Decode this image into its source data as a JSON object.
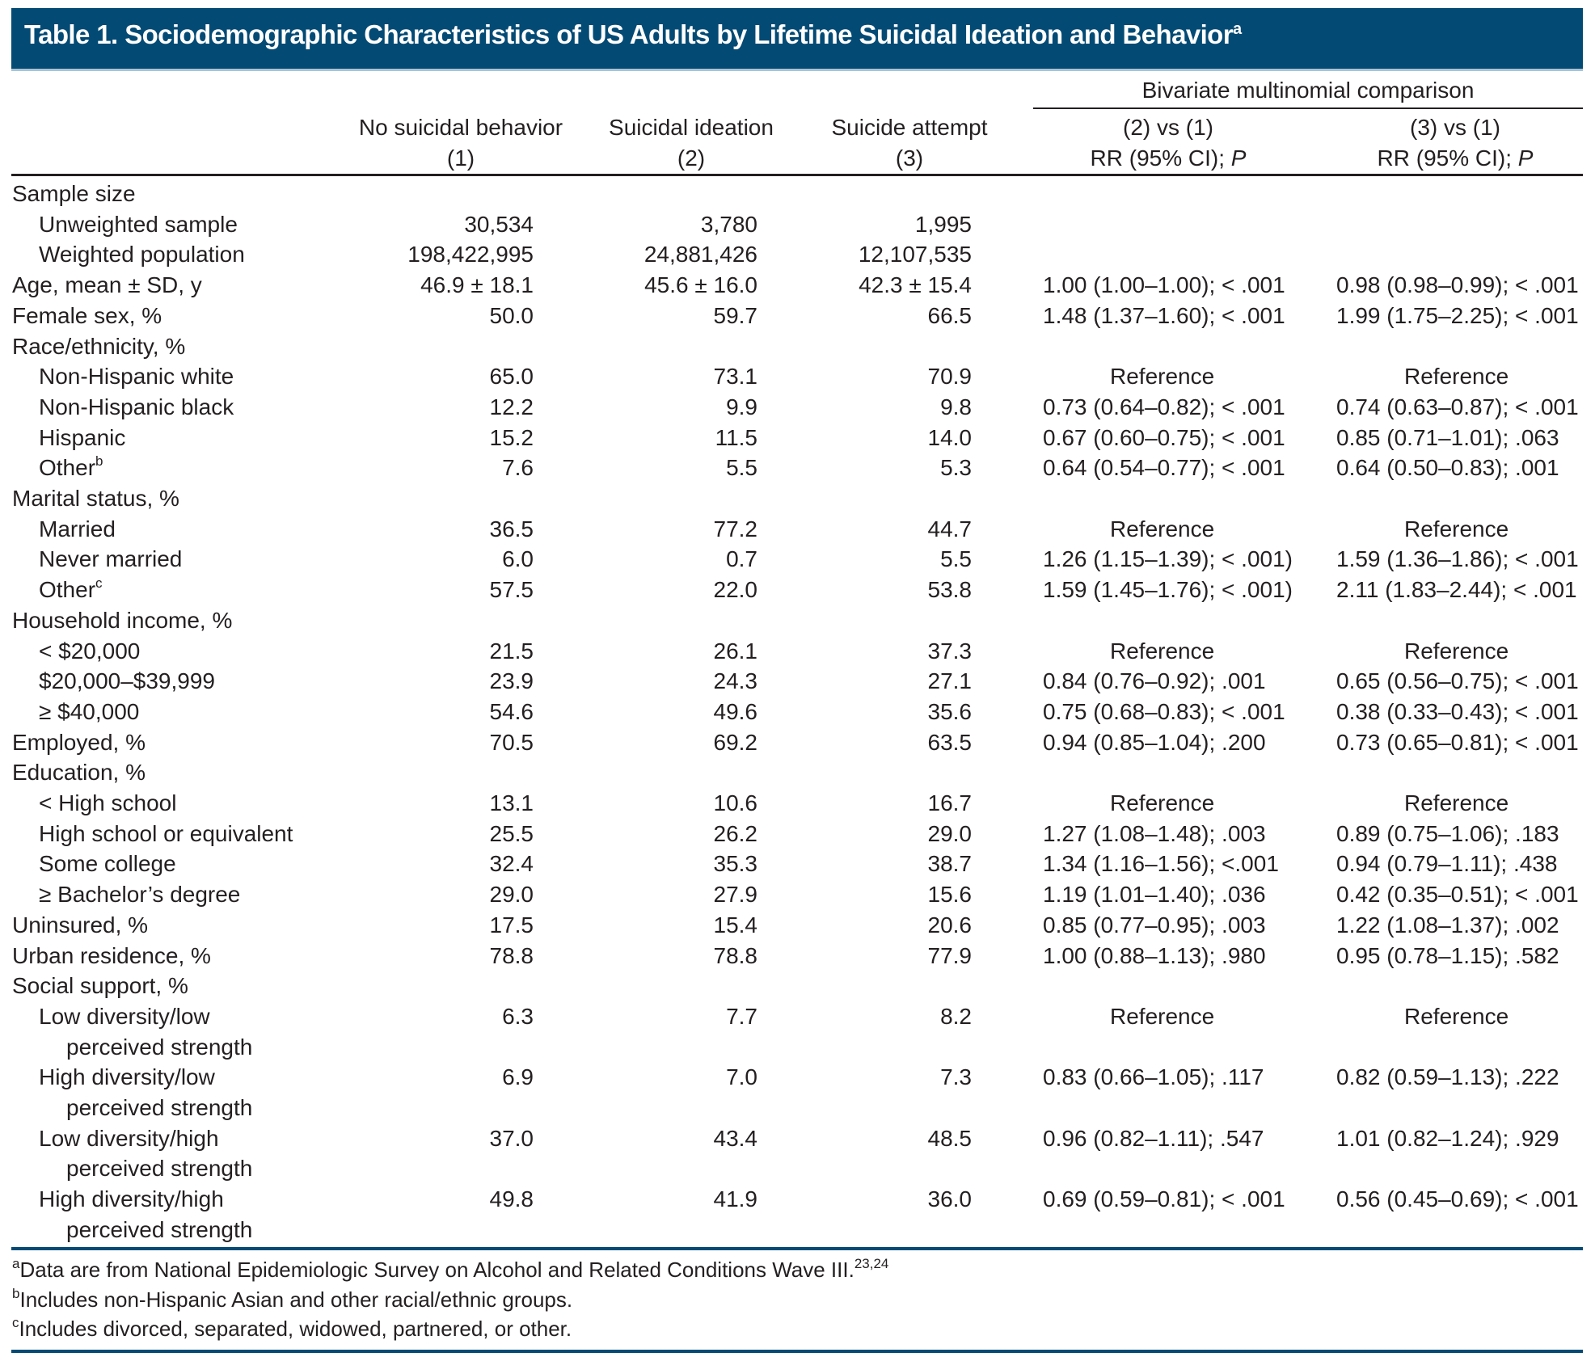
{
  "title": {
    "text": "Table 1. Sociodemographic Characteristics of US Adults by Lifetime Suicidal Ideation and Behavior",
    "footnote_marker": "a"
  },
  "header": {
    "group_label": "Bivariate multinomial comparison",
    "columns": [
      {
        "line1": "No suicidal behavior",
        "line2": "(1)"
      },
      {
        "line1": "Suicidal ideation",
        "line2": "(2)"
      },
      {
        "line1": "Suicide attempt",
        "line2": "(3)"
      },
      {
        "line1": "(2) vs (1)",
        "line2": "RR (95% CI); ",
        "line2_italic": "P"
      },
      {
        "line1": "(3) vs (1)",
        "line2": "RR (95% CI); ",
        "line2_italic": "P"
      }
    ]
  },
  "rows": [
    {
      "label": "Sample size",
      "indent": 0,
      "values": [
        "",
        "",
        "",
        "",
        ""
      ]
    },
    {
      "label": "Unweighted sample",
      "indent": 1,
      "values": [
        "30,534",
        "3,780",
        "1,995",
        "",
        ""
      ]
    },
    {
      "label": "Weighted population",
      "indent": 1,
      "values": [
        "198,422,995",
        "24,881,426",
        "12,107,535",
        "",
        ""
      ]
    },
    {
      "label": "Age, mean ± SD, y",
      "indent": 0,
      "values": [
        "46.9 ± 18.1",
        "45.6 ± 16.0",
        "42.3 ± 15.4",
        "1.00 (1.00–1.00); < .001",
        "0.98 (0.98–0.99); < .001"
      ]
    },
    {
      "label": "Female sex, %",
      "indent": 0,
      "values": [
        "50.0",
        "59.7",
        "66.5",
        "1.48 (1.37–1.60); < .001",
        "1.99 (1.75–2.25); < .001"
      ]
    },
    {
      "label": "Race/ethnicity, %",
      "indent": 0,
      "values": [
        "",
        "",
        "",
        "",
        ""
      ]
    },
    {
      "label": "Non-Hispanic white",
      "indent": 1,
      "values": [
        "65.0",
        "73.1",
        "70.9",
        "Reference",
        "Reference"
      ]
    },
    {
      "label": "Non-Hispanic black",
      "indent": 1,
      "values": [
        "12.2",
        "9.9",
        "9.8",
        "0.73 (0.64–0.82); < .001",
        "0.74 (0.63–0.87); < .001"
      ]
    },
    {
      "label": "Hispanic",
      "indent": 1,
      "values": [
        "15.2",
        "11.5",
        "14.0",
        "0.67 (0.60–0.75); < .001",
        "0.85 (0.71–1.01); .063"
      ]
    },
    {
      "label": "Other",
      "sup": "b",
      "indent": 1,
      "values": [
        "7.6",
        "5.5",
        "5.3",
        "0.64 (0.54–0.77); < .001",
        "0.64 (0.50–0.83); .001"
      ]
    },
    {
      "label": "Marital status, %",
      "indent": 0,
      "values": [
        "",
        "",
        "",
        "",
        ""
      ]
    },
    {
      "label": "Married",
      "indent": 1,
      "values": [
        "36.5",
        "77.2",
        "44.7",
        "Reference",
        "Reference"
      ]
    },
    {
      "label": "Never married",
      "indent": 1,
      "values": [
        "6.0",
        "0.7",
        "5.5",
        "1.26 (1.15–1.39); < .001)",
        "1.59 (1.36–1.86); < .001"
      ]
    },
    {
      "label": "Other",
      "sup": "c",
      "indent": 1,
      "values": [
        "57.5",
        "22.0",
        "53.8",
        "1.59 (1.45–1.76); < .001)",
        "2.11 (1.83–2.44); < .001"
      ]
    },
    {
      "label": "Household income, %",
      "indent": 0,
      "values": [
        "",
        "",
        "",
        "",
        ""
      ]
    },
    {
      "label": "< $20,000",
      "indent": 1,
      "values": [
        "21.5",
        "26.1",
        "37.3",
        "Reference",
        "Reference"
      ]
    },
    {
      "label": "$20,000–$39,999",
      "indent": 1,
      "values": [
        "23.9",
        "24.3",
        "27.1",
        "0.84 (0.76–0.92); .001",
        "0.65 (0.56–0.75); < .001"
      ]
    },
    {
      "label": "≥ $40,000",
      "indent": 1,
      "values": [
        "54.6",
        "49.6",
        "35.6",
        "0.75 (0.68–0.83); < .001",
        "0.38 (0.33–0.43); < .001"
      ]
    },
    {
      "label": "Employed, %",
      "indent": 0,
      "values": [
        "70.5",
        "69.2",
        "63.5",
        "0.94 (0.85–1.04); .200",
        "0.73 (0.65–0.81); < .001"
      ]
    },
    {
      "label": "Education, %",
      "indent": 0,
      "values": [
        "",
        "",
        "",
        "",
        ""
      ]
    },
    {
      "label": "< High school",
      "indent": 1,
      "values": [
        "13.1",
        "10.6",
        "16.7",
        "Reference",
        "Reference"
      ]
    },
    {
      "label": "High school or equivalent",
      "indent": 1,
      "values": [
        "25.5",
        "26.2",
        "29.0",
        "1.27 (1.08–1.48); .003",
        "0.89 (0.75–1.06); .183"
      ]
    },
    {
      "label": "Some college",
      "indent": 1,
      "values": [
        "32.4",
        "35.3",
        "38.7",
        "1.34 (1.16–1.56); <.001",
        "0.94 (0.79–1.11); .438"
      ]
    },
    {
      "label": "≥ Bachelor’s degree",
      "indent": 1,
      "values": [
        "29.0",
        "27.9",
        "15.6",
        "1.19 (1.01–1.40); .036",
        "0.42 (0.35–0.51); < .001"
      ]
    },
    {
      "label": "Uninsured, %",
      "indent": 0,
      "values": [
        "17.5",
        "15.4",
        "20.6",
        "0.85 (0.77–0.95); .003",
        "1.22 (1.08–1.37); .002"
      ]
    },
    {
      "label": "Urban residence, %",
      "indent": 0,
      "values": [
        "78.8",
        "78.8",
        "77.9",
        "1.00 (0.88–1.13); .980",
        "0.95 (0.78–1.15); .582"
      ]
    },
    {
      "label": "Social support, %",
      "indent": 0,
      "values": [
        "",
        "",
        "",
        "",
        ""
      ]
    },
    {
      "label": "Low diversity/low",
      "indent": 1,
      "values": [
        "6.3",
        "7.7",
        "8.2",
        "Reference",
        "Reference"
      ]
    },
    {
      "label": "perceived strength",
      "indent": 2,
      "values": [
        "",
        "",
        "",
        "",
        ""
      ]
    },
    {
      "label": "High diversity/low",
      "indent": 1,
      "values": [
        "6.9",
        "7.0",
        "7.3",
        "0.83 (0.66–1.05); .117",
        "0.82 (0.59–1.13); .222"
      ]
    },
    {
      "label": "perceived strength",
      "indent": 2,
      "values": [
        "",
        "",
        "",
        "",
        ""
      ]
    },
    {
      "label": "Low diversity/high",
      "indent": 1,
      "values": [
        "37.0",
        "43.4",
        "48.5",
        "0.96 (0.82–1.11); .547",
        "1.01 (0.82–1.24); .929"
      ]
    },
    {
      "label": "perceived strength",
      "indent": 2,
      "values": [
        "",
        "",
        "",
        "",
        ""
      ]
    },
    {
      "label": "High diversity/high",
      "indent": 1,
      "values": [
        "49.8",
        "41.9",
        "36.0",
        "0.69 (0.59–0.81); < .001",
        "0.56 (0.45–0.69); < .001"
      ]
    },
    {
      "label": "perceived strength",
      "indent": 2,
      "values": [
        "",
        "",
        "",
        "",
        ""
      ]
    }
  ],
  "footnotes": [
    {
      "marker": "a",
      "text": "Data are from National Epidemiologic Survey on Alcohol and Related Conditions Wave III.",
      "refs": "23,24"
    },
    {
      "marker": "b",
      "text": "Includes non-Hispanic Asian and other racial/ethnic groups.",
      "refs": ""
    },
    {
      "marker": "c",
      "text": "Includes divorced, separated, widowed, partnered, or other.",
      "refs": ""
    }
  ]
}
